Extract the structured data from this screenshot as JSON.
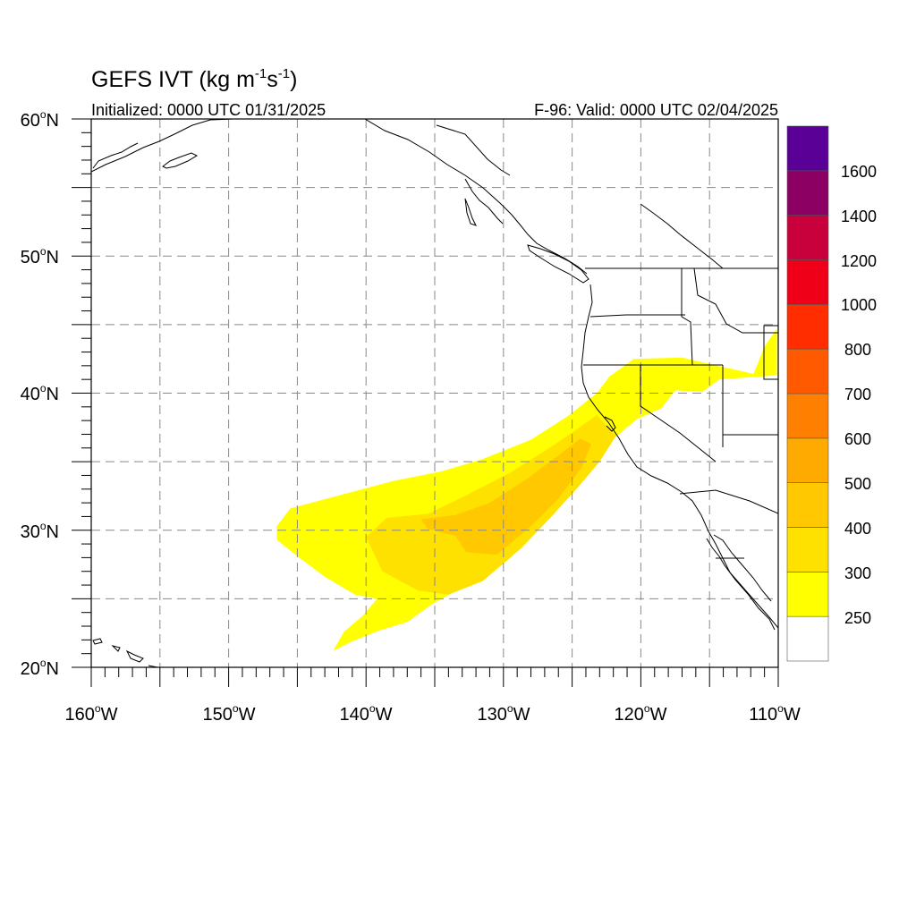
{
  "title": {
    "main": "GEFS IVT (kg m",
    "sup1": "-1",
    "mid": "s",
    "sup2": "-1",
    "close": ")"
  },
  "subtitle_left": "Initialized: 0000 UTC 01/31/2025",
  "subtitle_right": "F-96: Valid: 0000 UTC 02/04/2025",
  "lat_labels": [
    {
      "deg": "60",
      "hemi": "N"
    },
    {
      "deg": "50",
      "hemi": "N"
    },
    {
      "deg": "40",
      "hemi": "N"
    },
    {
      "deg": "30",
      "hemi": "N"
    },
    {
      "deg": "20",
      "hemi": "N"
    }
  ],
  "lon_labels": [
    {
      "deg": "160",
      "hemi": "W"
    },
    {
      "deg": "150",
      "hemi": "W"
    },
    {
      "deg": "140",
      "hemi": "W"
    },
    {
      "deg": "130",
      "hemi": "W"
    },
    {
      "deg": "120",
      "hemi": "W"
    },
    {
      "deg": "110",
      "hemi": "W"
    }
  ],
  "colorbar": {
    "labels": [
      "1600",
      "1400",
      "1200",
      "1000",
      "800",
      "700",
      "600",
      "500",
      "400",
      "300",
      "250"
    ],
    "colors": [
      "#ffffff",
      "#ffff00",
      "#ffe100",
      "#ffc800",
      "#ffaa00",
      "#ff7f00",
      "#ff5a00",
      "#ff2d00",
      "#f00018",
      "#c8003c",
      "#8c0064",
      "#5a0096"
    ]
  },
  "chart_data": {
    "type": "heatmap",
    "extent": {
      "lon": [
        -160,
        -110
      ],
      "lat": [
        20,
        60
      ]
    },
    "gridlines": {
      "lon": [
        -155,
        -145,
        -135,
        -125,
        -115
      ],
      "lat": [
        25,
        35,
        45,
        55
      ]
    },
    "levels": [
      250,
      300,
      400,
      500,
      600,
      700,
      800,
      1000,
      1200,
      1400,
      1600
    ],
    "regions": [
      {
        "level": 250,
        "polygon": [
          [
            -146.5,
            30.3
          ],
          [
            -145.5,
            31.6
          ],
          [
            -142.5,
            32.4
          ],
          [
            -138,
            33.6
          ],
          [
            -134.5,
            34.3
          ],
          [
            -131.5,
            35.2
          ],
          [
            -128,
            36.6
          ],
          [
            -125.2,
            38.4
          ],
          [
            -123.2,
            40.0
          ],
          [
            -122.3,
            41.2
          ],
          [
            -120.5,
            42.5
          ],
          [
            -117,
            42.6
          ],
          [
            -114,
            41.9
          ],
          [
            -111.8,
            41.4
          ],
          [
            -111.0,
            43.4
          ],
          [
            -110.1,
            44.7
          ],
          [
            -110.1,
            41.3
          ],
          [
            -114.3,
            41.0
          ],
          [
            -115.5,
            40.1
          ],
          [
            -117.5,
            40.2
          ],
          [
            -118.5,
            38.9
          ],
          [
            -120.3,
            38.1
          ],
          [
            -121.6,
            37.0
          ],
          [
            -123.3,
            35.6
          ],
          [
            -124.5,
            33.8
          ],
          [
            -126.0,
            31.6
          ],
          [
            -127.8,
            29.7
          ],
          [
            -129.7,
            27.8
          ],
          [
            -132.7,
            26.0
          ],
          [
            -135.2,
            24.6
          ],
          [
            -137.0,
            23.3
          ],
          [
            -139.0,
            22.7
          ],
          [
            -141.0,
            21.9
          ],
          [
            -142.4,
            21.2
          ],
          [
            -141.6,
            22.6
          ],
          [
            -140.2,
            23.8
          ],
          [
            -139.2,
            25.0
          ],
          [
            -140.8,
            25.3
          ],
          [
            -143.0,
            26.6
          ],
          [
            -145.0,
            28.1
          ],
          [
            -146.5,
            29.3
          ]
        ]
      },
      {
        "level": 300,
        "polygon": [
          [
            -140.0,
            29.5
          ],
          [
            -138.5,
            30.9
          ],
          [
            -135.5,
            31.2
          ],
          [
            -133.0,
            32.4
          ],
          [
            -129.5,
            34.2
          ],
          [
            -126.5,
            36.1
          ],
          [
            -124.6,
            37.4
          ],
          [
            -123.2,
            38.4
          ],
          [
            -121.8,
            36.9
          ],
          [
            -123.0,
            35.0
          ],
          [
            -124.6,
            33.1
          ],
          [
            -126.5,
            31.0
          ],
          [
            -128.7,
            28.7
          ],
          [
            -131.5,
            26.3
          ],
          [
            -134.0,
            25.3
          ],
          [
            -136.2,
            25.6
          ],
          [
            -138.8,
            27.0
          ]
        ]
      },
      {
        "level": 400,
        "polygon": [
          [
            -136.0,
            30.8
          ],
          [
            -133.5,
            31.1
          ],
          [
            -131.0,
            32.0
          ],
          [
            -128.5,
            33.6
          ],
          [
            -126.2,
            35.3
          ],
          [
            -124.4,
            36.7
          ],
          [
            -123.6,
            36.3
          ],
          [
            -124.3,
            34.6
          ],
          [
            -126.0,
            32.3
          ],
          [
            -128.0,
            30.3
          ],
          [
            -130.5,
            28.2
          ],
          [
            -132.7,
            28.4
          ],
          [
            -133.5,
            29.6
          ],
          [
            -135.5,
            30.1
          ]
        ]
      }
    ]
  }
}
